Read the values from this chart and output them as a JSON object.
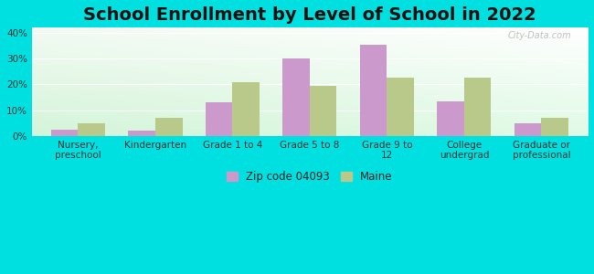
{
  "title": "School Enrollment by Level of School in 2022",
  "categories": [
    "Nursery,\npreschool",
    "Kindergarten",
    "Grade 1 to 4",
    "Grade 5 to 8",
    "Grade 9 to\n12",
    "College\nundergrad",
    "Graduate or\nprofessional"
  ],
  "zip_values": [
    2.5,
    2.0,
    13.0,
    30.0,
    35.5,
    13.5,
    5.0
  ],
  "maine_values": [
    5.0,
    7.0,
    21.0,
    19.5,
    22.5,
    22.5,
    7.0
  ],
  "zip_color": "#cc99cc",
  "maine_color": "#b8c98a",
  "background_color": "#00e0e0",
  "ylim": [
    0,
    42
  ],
  "yticks": [
    0,
    10,
    20,
    30,
    40
  ],
  "ytick_labels": [
    "0%",
    "10%",
    "20%",
    "30%",
    "40%"
  ],
  "title_fontsize": 14,
  "tick_fontsize": 7.5,
  "legend_label_zip": "Zip code 04093",
  "legend_label_maine": "Maine",
  "bar_width": 0.35,
  "watermark": "City-Data.com"
}
